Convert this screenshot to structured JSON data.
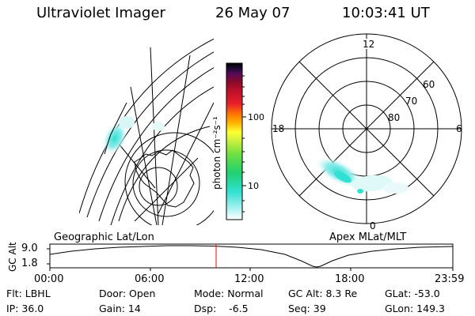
{
  "header": {
    "instrument": "Ultraviolet Imager",
    "date": "26 May 07",
    "time": "10:03:41 UT"
  },
  "colorbar": {
    "unit_label": "photon cm⁻²s⁻¹",
    "ticks": [
      "100",
      "10"
    ],
    "colors": [
      "#000000",
      "#1a0a2e",
      "#5a0a5a",
      "#8a0a2a",
      "#c0102a",
      "#e8202a",
      "#ff7a00",
      "#ffb000",
      "#ffff30",
      "#c8f040",
      "#70e040",
      "#20d070",
      "#30e0d0",
      "#a0f0f0",
      "#ffffff"
    ]
  },
  "polar": {
    "mlt_labels": {
      "top": "12",
      "left": "18",
      "right": "6",
      "bottom": "0"
    },
    "lat_labels": [
      "60",
      "70",
      "80"
    ]
  },
  "map_labels": {
    "left": "Geographic Lat/Lon",
    "right": "Apex MLat/MLT"
  },
  "altitude_plot": {
    "axis_title": "GC Alt",
    "y_ticks": [
      "9.0",
      "1.8"
    ],
    "x_ticks": [
      "00:00",
      "06:00",
      "12:00",
      "18:00",
      "23:59"
    ],
    "cursor_color": "#ff0000"
  },
  "info": {
    "flt": "Flt: LBHL",
    "door": "Door: Open",
    "mode": "Mode: Normal",
    "gcalt": "GC Alt: 8.3 Re",
    "glat": "GLat: -53.0",
    "ip": "IP: 36.0",
    "gain": "Gain: 14",
    "dsp": "Dsp:    -6.5",
    "seq": "Seq: 39",
    "glon": "GLon: 149.3"
  }
}
